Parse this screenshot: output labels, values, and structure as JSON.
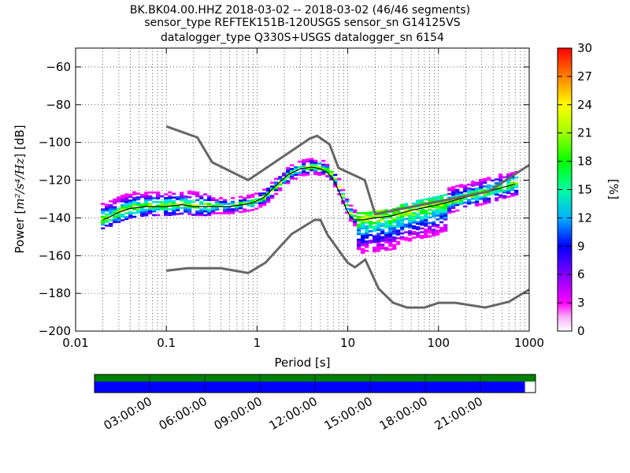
{
  "title_lines": [
    "BK.BK04.00.HHZ   2018-03-02 -- 2018-03-02  (46/46 segments)",
    "sensor_type REFTEK151B-120USGS sensor_sn G14125VS",
    "datalogger_type Q330S+USGS datalogger_sn 6154"
  ],
  "chart_data": {
    "type": "heatmap",
    "title": "BK.BK04.00.HHZ   2018-03-02 -- 2018-03-02  (46/46 segments)",
    "xlabel": "Period [s]",
    "ylabel_prefix": "Power [",
    "ylabel_unit": "m²/s⁴/Hz",
    "ylabel_suffix": "] [dB]",
    "x_scale": "log",
    "xlim": [
      0.01,
      1000
    ],
    "ylim": [
      -200,
      -50
    ],
    "x_ticks": [
      0.01,
      0.1,
      1,
      10,
      100,
      1000
    ],
    "x_tick_labels": [
      "0.01",
      "0.1",
      "1",
      "10",
      "100",
      "1000"
    ],
    "y_ticks": [
      -200,
      -180,
      -160,
      -140,
      -120,
      -100,
      -80,
      -60
    ],
    "y_tick_labels": [
      "−200",
      "−180",
      "−160",
      "−140",
      "−120",
      "−100",
      "−80",
      "−60"
    ],
    "grid": true,
    "colorbar": {
      "label": "[%]",
      "range": [
        0,
        30
      ],
      "ticks": [
        "0",
        "3",
        "6",
        "9",
        "12",
        "15",
        "18",
        "21",
        "24",
        "27",
        "30"
      ]
    },
    "nhnm": {
      "x": [
        0.1,
        0.22,
        0.32,
        0.8,
        3.8,
        4.6,
        6.3,
        7.9,
        15.4,
        20,
        354.8,
        1000
      ],
      "y": [
        -91.5,
        -97.4,
        -110.5,
        -120,
        -98,
        -96.5,
        -101,
        -113.5,
        -120,
        -138,
        -126,
        -112
      ]
    },
    "nlnm": {
      "x": [
        0.1,
        0.17,
        0.4,
        0.8,
        1.24,
        2.4,
        4.3,
        5,
        6,
        10,
        12,
        15.6,
        21.9,
        31.6,
        45,
        70,
        101,
        154,
        328,
        600,
        1000
      ],
      "y": [
        -168,
        -166.7,
        -166.7,
        -169.2,
        -163.7,
        -148.6,
        -141.1,
        -141.1,
        -149,
        -163.8,
        -166.2,
        -162.1,
        -177.5,
        -185,
        -187.5,
        -187.5,
        -185,
        -185,
        -187.5,
        -184.4,
        -178
      ]
    },
    "mode_curve": {
      "x": [
        0.02,
        0.025,
        0.03,
        0.04,
        0.06,
        0.1,
        0.15,
        0.2,
        0.3,
        0.5,
        0.7,
        0.9,
        1.2,
        1.6,
        2.2,
        3,
        4,
        5,
        6,
        7,
        8,
        9,
        10,
        11,
        12,
        15,
        20,
        30,
        50,
        80,
        120,
        200,
        300,
        500,
        700
      ],
      "y": [
        -141,
        -139,
        -137,
        -135,
        -134,
        -134,
        -133,
        -134,
        -134,
        -134,
        -133,
        -132,
        -129,
        -123,
        -117,
        -114,
        -113,
        -114,
        -116,
        -120,
        -126,
        -132,
        -137,
        -140,
        -141,
        -141,
        -140,
        -139,
        -136,
        -134,
        -132,
        -129,
        -127,
        -124,
        -122
      ]
    },
    "time_axis": {
      "tick_labels": [
        "03:00:00",
        "06:00:00",
        "09:00:00",
        "12:00:00",
        "15:00:00",
        "18:00:00",
        "21:00:00"
      ],
      "coverage_fraction": 0.976
    }
  }
}
